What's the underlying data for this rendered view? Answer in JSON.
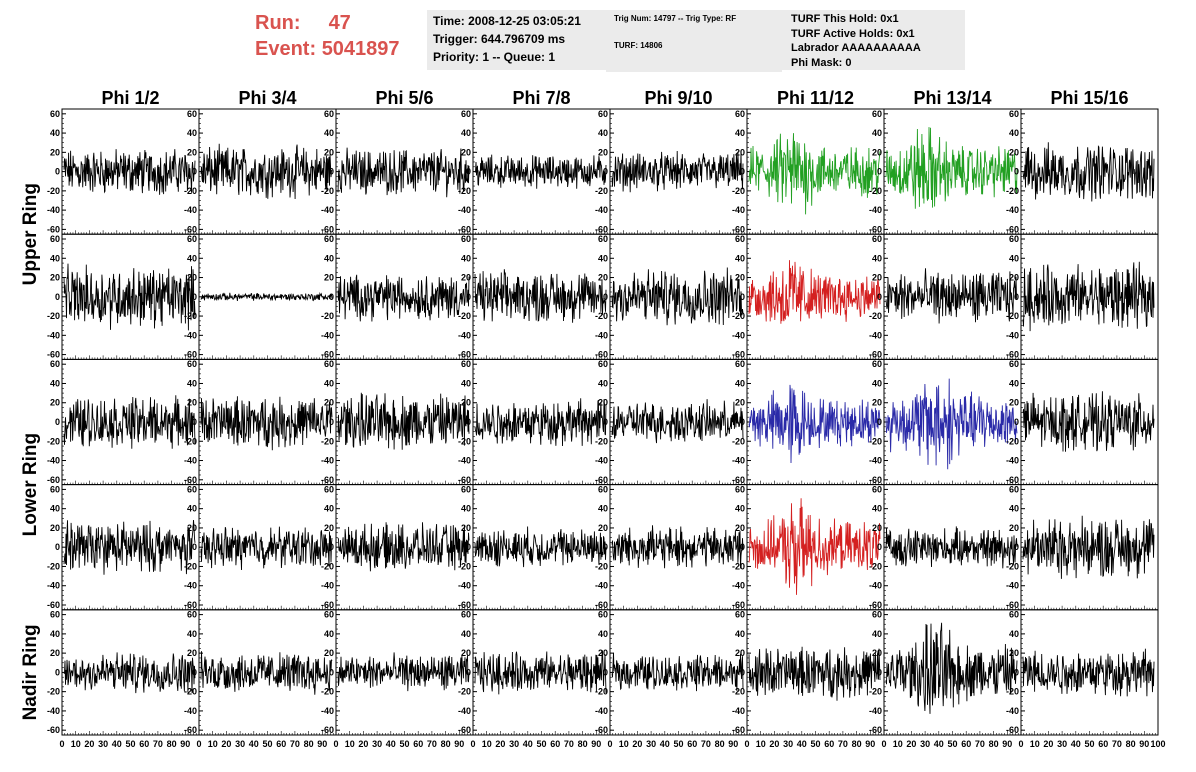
{
  "header": {
    "run_label": "Run:",
    "run_value": "47",
    "event_label": "Event:",
    "event_value": "5041897",
    "time": "Time: 2008-12-25 03:05:21",
    "trigger": "Trigger: 644.796709 ms",
    "priority": "Priority: 1 -- Queue: 1",
    "trig_num": "Trig Num: 14797 -- Trig Type: RF",
    "turf": "TURF: 14806",
    "turf_this_hold": "TURF This Hold: 0x1",
    "turf_active_holds": "TURF Active Holds: 0x1",
    "labrador": "Labrador AAAAAAAAAA",
    "phi_mask": "Phi Mask: 0"
  },
  "chart_data": {
    "type": "line",
    "columns": [
      "Phi 1/2",
      "Phi 3/4",
      "Phi 5/6",
      "Phi 7/8",
      "Phi 9/10",
      "Phi 11/12",
      "Phi 13/14",
      "Phi 15/16"
    ],
    "ring_labels": [
      "Upper Ring",
      "Lower Ring",
      "Nadir Ring"
    ],
    "rows": 5,
    "xlim": [
      0,
      100
    ],
    "ylim": [
      -65,
      65
    ],
    "y_ticks": [
      60,
      40,
      20,
      0,
      -20,
      -40,
      -60
    ],
    "x_tick_text": [
      "0",
      "10",
      "20",
      "30",
      "40",
      "50",
      "60",
      "70",
      "80",
      "90",
      "100"
    ],
    "colors": {
      "default": "#000000",
      "green": "#22a022",
      "red": "#d42020",
      "blue": "#2a2aa8"
    },
    "panels": [
      [
        {
          "amp": 18,
          "c": "default"
        },
        {
          "amp": 20,
          "c": "default"
        },
        {
          "amp": 18,
          "c": "default"
        },
        {
          "amp": 13,
          "c": "default"
        },
        {
          "amp": 15,
          "c": "default"
        },
        {
          "amp": 20,
          "c": "green",
          "burst": 35
        },
        {
          "amp": 20,
          "c": "green",
          "burst": 30
        },
        {
          "amp": 22,
          "c": "default"
        }
      ],
      [
        {
          "amp": 24,
          "c": "default"
        },
        {
          "amp": 3,
          "c": "default"
        },
        {
          "amp": 18,
          "c": "default"
        },
        {
          "amp": 20,
          "c": "default"
        },
        {
          "amp": 22,
          "c": "default"
        },
        {
          "amp": 18,
          "c": "red",
          "burst": 32
        },
        {
          "amp": 20,
          "c": "default"
        },
        {
          "amp": 25,
          "c": "default"
        }
      ],
      [
        {
          "amp": 20,
          "c": "default"
        },
        {
          "amp": 20,
          "c": "default"
        },
        {
          "amp": 22,
          "c": "default"
        },
        {
          "amp": 18,
          "c": "default"
        },
        {
          "amp": 16,
          "c": "default"
        },
        {
          "amp": 18,
          "c": "blue",
          "burst": 32
        },
        {
          "amp": 22,
          "c": "blue",
          "burst": 40
        },
        {
          "amp": 22,
          "c": "default"
        }
      ],
      [
        {
          "amp": 20,
          "c": "default"
        },
        {
          "amp": 16,
          "c": "default"
        },
        {
          "amp": 18,
          "c": "default"
        },
        {
          "amp": 15,
          "c": "default"
        },
        {
          "amp": 16,
          "c": "default"
        },
        {
          "amp": 20,
          "c": "red",
          "burst": 38
        },
        {
          "amp": 15,
          "c": "default"
        },
        {
          "amp": 24,
          "c": "default"
        }
      ],
      [
        {
          "amp": 16,
          "c": "default"
        },
        {
          "amp": 16,
          "c": "default"
        },
        {
          "amp": 14,
          "c": "default"
        },
        {
          "amp": 16,
          "c": "default"
        },
        {
          "amp": 14,
          "c": "default"
        },
        {
          "amp": 20,
          "c": "default"
        },
        {
          "amp": 22,
          "c": "default",
          "burst": 38
        },
        {
          "amp": 18,
          "c": "default"
        }
      ]
    ]
  }
}
